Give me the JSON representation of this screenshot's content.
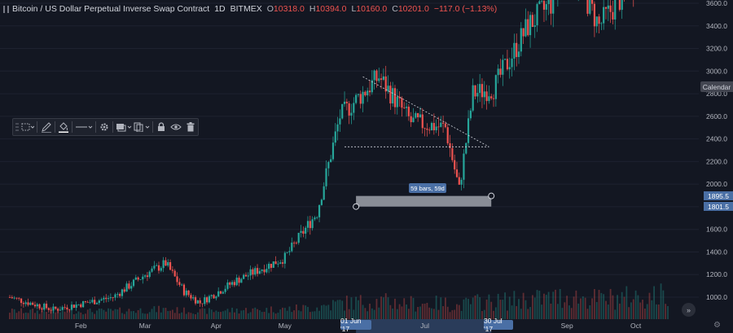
{
  "legend": {
    "symbol": "Bitcoin / US Dollar Perpetual Inverse Swap Contract",
    "interval": "1D",
    "exchange": "BITMEX",
    "open_key": "O",
    "open": "10318.0",
    "high_key": "H",
    "high": "10394.0",
    "low_key": "L",
    "low": "10160.0",
    "close_key": "C",
    "close": "10201.0",
    "change": "−117.0 (−1.13%)"
  },
  "toolbar": {
    "icons": [
      "dotted-rect-icon",
      "pencil-icon",
      "fill-bucket-icon",
      "line-style-icon",
      "gear-icon",
      "layers-icon",
      "clone-icon",
      "lock-icon",
      "eye-icon",
      "trash-icon"
    ]
  },
  "price_axis": {
    "labels": [
      "3600.0",
      "3400.0",
      "3200.0",
      "3000.0",
      "2800.0",
      "2600.0",
      "2400.0",
      "2200.0",
      "2000.0",
      "1800.0",
      "1600.0",
      "1400.0",
      "1200.0",
      "1000.0"
    ],
    "calendar_label": "Calendar",
    "tag_top": "1895.5",
    "tag_bottom": "1801.5"
  },
  "time_axis": {
    "labels": [
      "Feb",
      "Mar",
      "Apr",
      "May",
      "Jul",
      "Sep",
      "Oct"
    ],
    "tag_start": "01 Jun '17",
    "tag_end": "30 Jul '17"
  },
  "range_tooltip": "59 bars, 59d",
  "colors": {
    "up": "#26a69a",
    "down": "#ef5350",
    "background": "#131722",
    "selection": "#4a6fa5"
  },
  "chart_data": {
    "type": "candlestick",
    "y_range": [
      850,
      3680
    ],
    "x_range": [
      "2017-01-01",
      "2017-10-15"
    ],
    "price_ticks": [
      3600,
      3400,
      3200,
      3000,
      2800,
      2600,
      2400,
      2200,
      2000,
      1800,
      1600,
      1400,
      1200,
      1000
    ],
    "trend_path": [
      [
        "2017-01-01",
        1000
      ],
      [
        "2017-01-20",
        890
      ],
      [
        "2017-02-15",
        1000
      ],
      [
        "2017-03-01",
        1200
      ],
      [
        "2017-03-10",
        1300
      ],
      [
        "2017-03-18",
        1050
      ],
      [
        "2017-03-25",
        950
      ],
      [
        "2017-04-10",
        1150
      ],
      [
        "2017-05-01",
        1350
      ],
      [
        "2017-05-15",
        1750
      ],
      [
        "2017-05-25",
        2600
      ],
      [
        "2017-06-11",
        2950
      ],
      [
        "2017-06-25",
        2550
      ],
      [
        "2017-07-10",
        2500
      ],
      [
        "2017-07-16",
        1950
      ],
      [
        "2017-07-22",
        2800
      ],
      [
        "2017-07-31",
        2850
      ],
      [
        "2017-08-15",
        3400
      ],
      [
        "2017-08-25",
        3600
      ],
      [
        "2017-09-01",
        4000
      ],
      [
        "2017-09-15",
        3400
      ],
      [
        "2017-10-15",
        4200
      ]
    ],
    "drawings": {
      "triangle_upper": [
        [
          "2017-06-04",
          2950
        ],
        [
          "2017-07-29",
          2330
        ]
      ],
      "triangle_lower": [
        [
          "2017-05-27",
          2330
        ],
        [
          "2017-07-29",
          2330
        ]
      ],
      "date_range": {
        "start": "2017-06-01",
        "end": "2017-07-30",
        "top": 1895.5,
        "bottom": 1801.5
      }
    }
  }
}
